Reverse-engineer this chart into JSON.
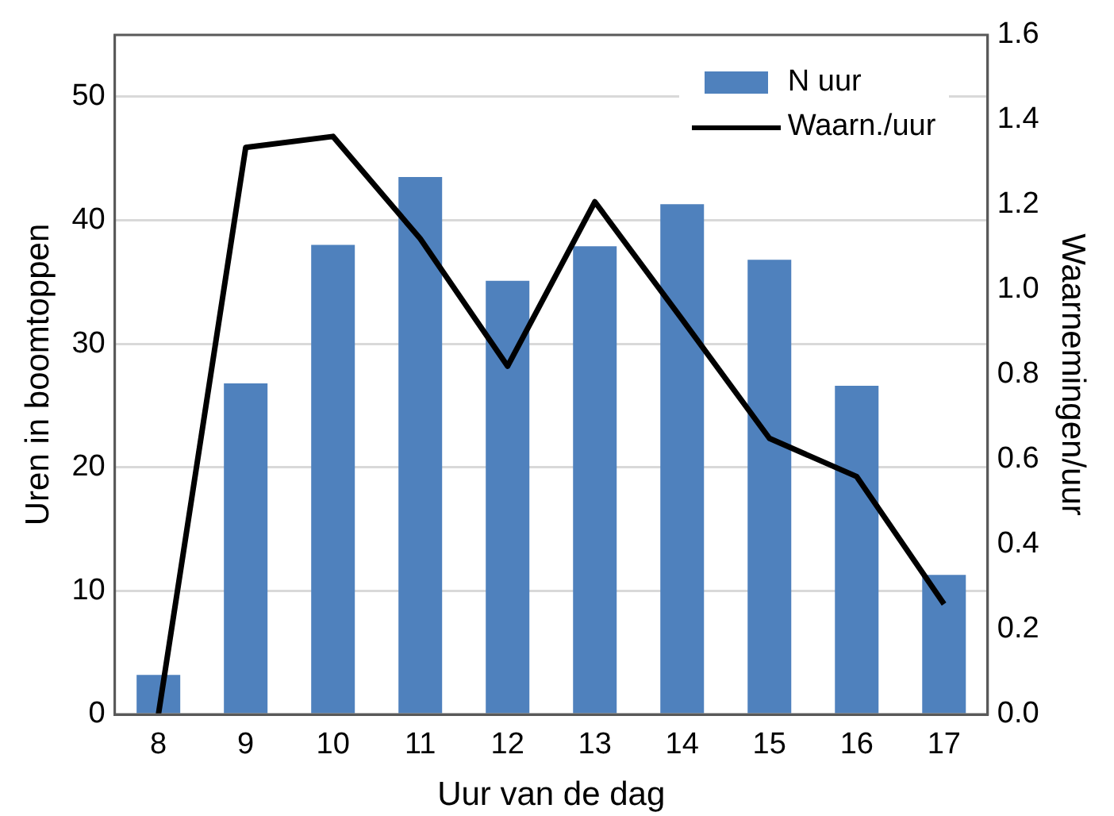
{
  "chart_data": {
    "type": "bar",
    "xlabel": "Uur van de dag",
    "ylabel": "Uren in boomtoppen",
    "y2label": "Waarnemingen/uur",
    "categories": [
      "8",
      "9",
      "10",
      "11",
      "12",
      "13",
      "14",
      "15",
      "16",
      "17"
    ],
    "series": [
      {
        "name": "N uur",
        "color": "#4f81bd",
        "values": [
          3.2,
          26.8,
          38,
          43.5,
          35.1,
          37.9,
          41.3,
          36.8,
          26.6,
          11.3
        ]
      },
      {
        "name": "Waarn./uur",
        "type": "line",
        "axis": "y2",
        "color": "#000000",
        "values": [
          0,
          1.335,
          1.361,
          1.12,
          0.82,
          1.207,
          0.93,
          0.65,
          0.56,
          0.26
        ]
      }
    ],
    "ylim": [
      0,
      55
    ],
    "yticks": [
      0,
      10,
      20,
      30,
      40,
      50
    ],
    "y2lim": [
      0,
      1.6
    ],
    "y2ticks": [
      {
        "value": 0,
        "label": "0.0"
      },
      {
        "value": 0.2,
        "label": "0.2"
      },
      {
        "value": 0.4,
        "label": "0.4"
      },
      {
        "value": 0.6,
        "label": "0.6"
      },
      {
        "value": 0.8,
        "label": "0.8"
      },
      {
        "value": 1,
        "label": "1.0"
      },
      {
        "value": 1.2,
        "label": "1.2"
      },
      {
        "value": 1.4,
        "label": "1.4"
      },
      {
        "value": 1.6,
        "label": "1.6"
      }
    ],
    "grid": "y",
    "legend": "top right",
    "marker": "none"
  }
}
